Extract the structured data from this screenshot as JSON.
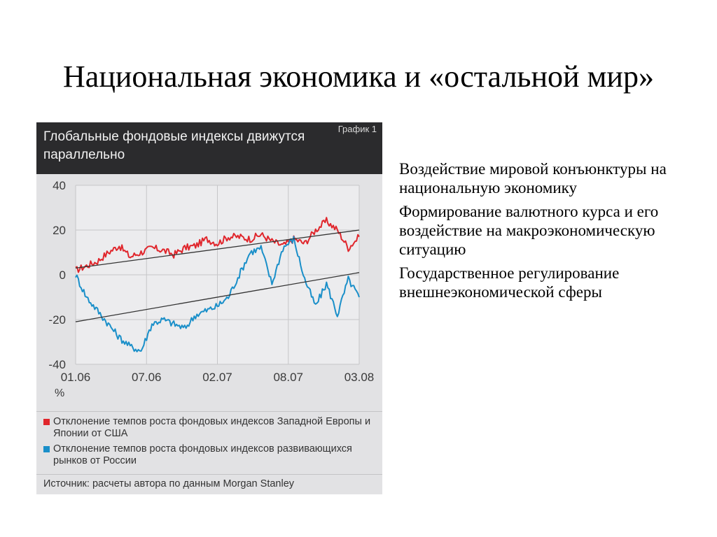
{
  "slide": {
    "title": "Национальная экономика и «остальной мир»",
    "bullets": [
      "Воздействие мировой конъюнктуры на национальную экономику",
      "Формирование валютного курса и его воздействие на макроэкономическую ситуацию",
      "Государственное регулирование внешнеэкономической сферы"
    ]
  },
  "chart_data": {
    "type": "line",
    "title": "Глобальные фондовые индексы движутся параллельно",
    "badge": "График 1",
    "ylabel": "%",
    "ylim": [
      -40,
      40
    ],
    "yticks": [
      40,
      20,
      0,
      -20,
      -40
    ],
    "xticks": [
      "01.06",
      "07.06",
      "02.07",
      "08.07",
      "03.08"
    ],
    "x_range": [
      "2006-01",
      "2008-03"
    ],
    "grid": true,
    "source": "Источник: расчеты автора по данным Morgan Stanley",
    "colors": {
      "red": "#e0262c",
      "blue": "#1a8fc9",
      "trend": "#333333"
    },
    "series": [
      {
        "name": "Отклонение темпов роста фондовых индексов Западной Европы и Японии от США",
        "color": "#e0262c",
        "x": [
          "2006-01",
          "2006-02",
          "2006-03",
          "2006-04",
          "2006-05",
          "2006-06",
          "2006-07",
          "2006-08",
          "2006-09",
          "2006-10",
          "2006-11",
          "2006-12",
          "2007-01",
          "2007-02",
          "2007-03",
          "2007-04",
          "2007-05",
          "2007-06",
          "2007-07",
          "2007-08",
          "2007-09",
          "2007-10",
          "2007-11",
          "2007-12",
          "2008-01",
          "2008-02",
          "2008-03"
        ],
        "y": [
          2,
          4,
          6,
          10,
          13,
          8,
          10,
          12,
          11,
          9,
          12,
          13,
          16,
          14,
          17,
          17,
          16,
          18,
          15,
          13,
          16,
          14,
          20,
          24,
          20,
          12,
          17
        ]
      },
      {
        "name": "Отклонение темпов роста фондовых индексов развивающихся рынков от России",
        "color": "#1a8fc9",
        "x": [
          "2006-01",
          "2006-02",
          "2006-03",
          "2006-04",
          "2006-05",
          "2006-06",
          "2006-07",
          "2006-08",
          "2006-09",
          "2006-10",
          "2006-11",
          "2006-12",
          "2007-01",
          "2007-02",
          "2007-03",
          "2007-04",
          "2007-05",
          "2007-06",
          "2007-07",
          "2007-08",
          "2007-09",
          "2007-10",
          "2007-11",
          "2007-12",
          "2008-01",
          "2008-02",
          "2008-03"
        ],
        "y": [
          0,
          -10,
          -16,
          -22,
          -28,
          -32,
          -34,
          -22,
          -20,
          -22,
          -24,
          -18,
          -16,
          -14,
          -10,
          0,
          10,
          12,
          -4,
          12,
          16,
          -2,
          -14,
          -4,
          -18,
          -2,
          -10
        ]
      }
    ],
    "trendlines": [
      {
        "x": [
          "2006-01",
          "2008-03"
        ],
        "y": [
          3,
          20
        ]
      },
      {
        "x": [
          "2006-01",
          "2008-03"
        ],
        "y": [
          -21,
          1
        ]
      }
    ]
  }
}
